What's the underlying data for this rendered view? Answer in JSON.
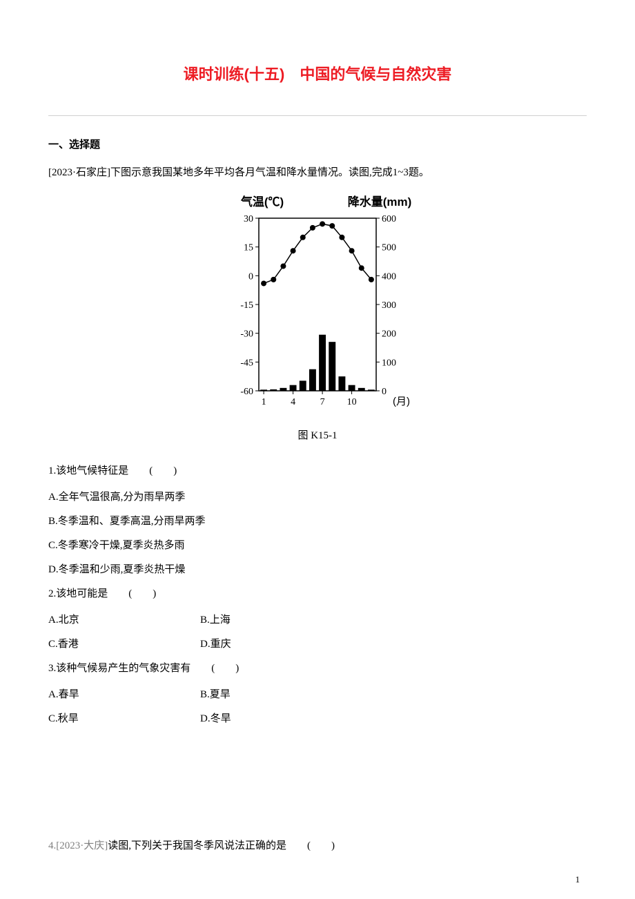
{
  "title": "课时训练(十五)　中国的气候与自然灾害",
  "section_heading": "一、选择题",
  "intro": {
    "tag": "[2023·石家庄]",
    "text": "下图示意我国某地多年平均各月气温和降水量情况。读图,完成1~3题。"
  },
  "chart": {
    "type": "combo-line-bar",
    "caption": "图 K15-1",
    "background_color": "#ffffff",
    "axis_color": "#000000",
    "text_color": "#000000",
    "tick_fontsize": 14,
    "label_fontsize": 15,
    "left_axis": {
      "title": "气温(℃)",
      "min": -60,
      "max": 30,
      "ticks": [
        -60,
        -45,
        -30,
        -15,
        0,
        15,
        30
      ]
    },
    "right_axis": {
      "title": "降水量(mm)",
      "min": 0,
      "max": 600,
      "ticks": [
        0,
        100,
        200,
        300,
        400,
        500,
        600
      ]
    },
    "x_axis": {
      "title": "(月)",
      "ticks": [
        1,
        4,
        7,
        10
      ],
      "months": [
        1,
        2,
        3,
        4,
        5,
        6,
        7,
        8,
        9,
        10,
        11,
        12
      ]
    },
    "temperature_line": {
      "color": "#000000",
      "marker": "circle-filled",
      "marker_size": 4,
      "line_width": 1.5,
      "values_C": [
        -4,
        -2,
        5,
        13,
        20,
        25,
        27,
        26,
        20,
        13,
        4,
        -2
      ]
    },
    "precipitation_bars": {
      "color": "#000000",
      "bar_width": 0.7,
      "values_mm": [
        4,
        5,
        10,
        20,
        35,
        75,
        195,
        170,
        50,
        20,
        10,
        4
      ]
    }
  },
  "q1": {
    "stem": "1.该地气候特征是　　(　　)",
    "opts": {
      "A": "A.全年气温很高,分为雨旱两季",
      "B": "B.冬季温和、夏季高温,分雨旱两季",
      "C": "C.冬季寒冷干燥,夏季炎热多雨",
      "D": "D.冬季温和少雨,夏季炎热干燥"
    }
  },
  "q2": {
    "stem": "2.该地可能是　　(　　)",
    "opts": {
      "A": "A.北京",
      "B": "B.上海",
      "C": "C.香港",
      "D": "D.重庆"
    }
  },
  "q3": {
    "stem": "3.该种气候易产生的气象灾害有　　(　　)",
    "opts": {
      "A": "A.春旱",
      "B": "B.夏旱",
      "C": "C.秋旱",
      "D": "D.冬旱"
    }
  },
  "q4": {
    "tag": "4.[2023·大庆]",
    "text": "读图,下列关于我国冬季风说法正确的是　　(　　)"
  },
  "page_number": "1"
}
